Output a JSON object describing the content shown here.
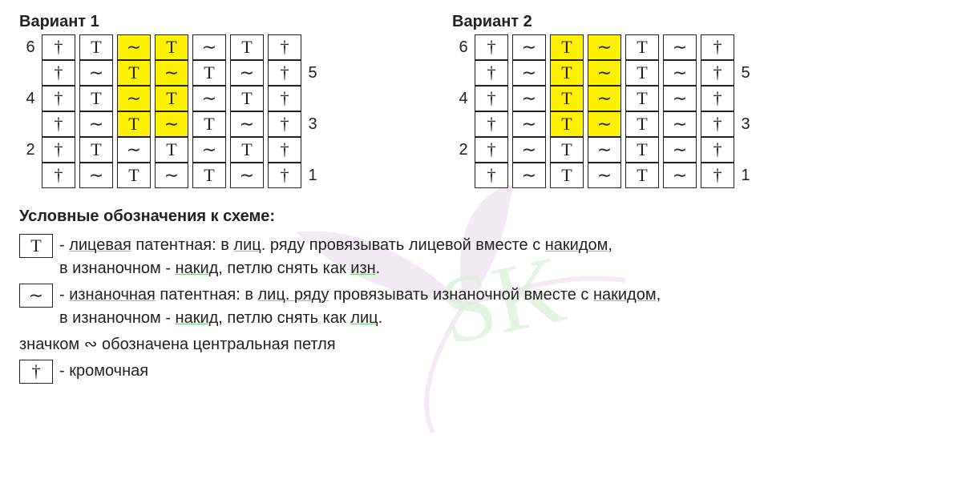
{
  "scheme1": {
    "title": "Вариант 1",
    "rows": [
      {
        "num_left": "6",
        "num_right": "",
        "cells": [
          {
            "s": "†"
          },
          {
            "sp": true
          },
          {
            "s": "T"
          },
          {
            "sp": true
          },
          {
            "s": "∼",
            "hl": true
          },
          {
            "sp": true
          },
          {
            "s": "T",
            "hl": true
          },
          {
            "sp": true
          },
          {
            "s": "∼"
          },
          {
            "sp": true
          },
          {
            "s": "T"
          },
          {
            "sp": true
          },
          {
            "s": "†"
          }
        ]
      },
      {
        "num_left": "",
        "num_right": "5",
        "cells": [
          {
            "s": "†"
          },
          {
            "sp": true
          },
          {
            "s": "∼"
          },
          {
            "sp": true
          },
          {
            "s": "T",
            "hl": true
          },
          {
            "sp": true
          },
          {
            "s": "∼",
            "hl": true
          },
          {
            "sp": true
          },
          {
            "s": "T"
          },
          {
            "sp": true
          },
          {
            "s": "∼"
          },
          {
            "sp": true
          },
          {
            "s": "†"
          }
        ]
      },
      {
        "num_left": "4",
        "num_right": "",
        "cells": [
          {
            "s": "†"
          },
          {
            "sp": true
          },
          {
            "s": "T"
          },
          {
            "sp": true
          },
          {
            "s": "∼",
            "hl": true
          },
          {
            "sp": true
          },
          {
            "s": "T",
            "hl": true
          },
          {
            "sp": true
          },
          {
            "s": "∼"
          },
          {
            "sp": true
          },
          {
            "s": "T"
          },
          {
            "sp": true
          },
          {
            "s": "†"
          }
        ]
      },
      {
        "num_left": "",
        "num_right": "3",
        "cells": [
          {
            "s": "†"
          },
          {
            "sp": true
          },
          {
            "s": "∼"
          },
          {
            "sp": true
          },
          {
            "s": "T",
            "hl": true
          },
          {
            "sp": true
          },
          {
            "s": "∼",
            "hl": true
          },
          {
            "sp": true
          },
          {
            "s": "T"
          },
          {
            "sp": true
          },
          {
            "s": "∼"
          },
          {
            "sp": true
          },
          {
            "s": "†"
          }
        ]
      },
      {
        "num_left": "2",
        "num_right": "",
        "cells": [
          {
            "s": "†"
          },
          {
            "sp": true
          },
          {
            "s": "T"
          },
          {
            "sp": true
          },
          {
            "s": "∼"
          },
          {
            "sp": true
          },
          {
            "s": "T"
          },
          {
            "sp": true
          },
          {
            "s": "∼"
          },
          {
            "sp": true
          },
          {
            "s": "T"
          },
          {
            "sp": true
          },
          {
            "s": "†"
          }
        ]
      },
      {
        "num_left": "",
        "num_right": "1",
        "cells": [
          {
            "s": "†"
          },
          {
            "sp": true
          },
          {
            "s": "∼"
          },
          {
            "sp": true
          },
          {
            "s": "T"
          },
          {
            "sp": true
          },
          {
            "s": "∼"
          },
          {
            "sp": true
          },
          {
            "s": "T"
          },
          {
            "sp": true
          },
          {
            "s": "∼"
          },
          {
            "sp": true
          },
          {
            "s": "†"
          }
        ]
      }
    ]
  },
  "scheme2": {
    "title": "Вариант 2",
    "rows": [
      {
        "num_left": "6",
        "num_right": "",
        "cells": [
          {
            "s": "†"
          },
          {
            "sp": true
          },
          {
            "s": "∼"
          },
          {
            "sp": true
          },
          {
            "s": "T",
            "hl": true
          },
          {
            "sp": true
          },
          {
            "s": "∼",
            "hl": true
          },
          {
            "sp": true
          },
          {
            "s": "T"
          },
          {
            "sp": true
          },
          {
            "s": "∼"
          },
          {
            "sp": true
          },
          {
            "s": "†"
          }
        ]
      },
      {
        "num_left": "",
        "num_right": "5",
        "cells": [
          {
            "s": "†"
          },
          {
            "sp": true
          },
          {
            "s": "∼"
          },
          {
            "sp": true
          },
          {
            "s": "T",
            "hl": true
          },
          {
            "sp": true
          },
          {
            "s": "∼",
            "hl": true
          },
          {
            "sp": true
          },
          {
            "s": "T"
          },
          {
            "sp": true
          },
          {
            "s": "∼"
          },
          {
            "sp": true
          },
          {
            "s": "†"
          }
        ]
      },
      {
        "num_left": "4",
        "num_right": "",
        "cells": [
          {
            "s": "†"
          },
          {
            "sp": true
          },
          {
            "s": "∼"
          },
          {
            "sp": true
          },
          {
            "s": "T",
            "hl": true
          },
          {
            "sp": true
          },
          {
            "s": "∼",
            "hl": true
          },
          {
            "sp": true
          },
          {
            "s": "T"
          },
          {
            "sp": true
          },
          {
            "s": "∼"
          },
          {
            "sp": true
          },
          {
            "s": "†"
          }
        ]
      },
      {
        "num_left": "",
        "num_right": "3",
        "cells": [
          {
            "s": "†"
          },
          {
            "sp": true
          },
          {
            "s": "∼"
          },
          {
            "sp": true
          },
          {
            "s": "T",
            "hl": true
          },
          {
            "sp": true
          },
          {
            "s": "∼",
            "hl": true
          },
          {
            "sp": true
          },
          {
            "s": "T"
          },
          {
            "sp": true
          },
          {
            "s": "∼"
          },
          {
            "sp": true
          },
          {
            "s": "†"
          }
        ]
      },
      {
        "num_left": "2",
        "num_right": "",
        "cells": [
          {
            "s": "†"
          },
          {
            "sp": true
          },
          {
            "s": "∼"
          },
          {
            "sp": true
          },
          {
            "s": "T"
          },
          {
            "sp": true
          },
          {
            "s": "∼"
          },
          {
            "sp": true
          },
          {
            "s": "T"
          },
          {
            "sp": true
          },
          {
            "s": "∼"
          },
          {
            "sp": true
          },
          {
            "s": "†"
          }
        ]
      },
      {
        "num_left": "",
        "num_right": "1",
        "cells": [
          {
            "s": "†"
          },
          {
            "sp": true
          },
          {
            "s": "∼"
          },
          {
            "sp": true
          },
          {
            "s": "T"
          },
          {
            "sp": true
          },
          {
            "s": "∼"
          },
          {
            "sp": true
          },
          {
            "s": "T"
          },
          {
            "sp": true
          },
          {
            "s": "∼"
          },
          {
            "sp": true
          },
          {
            "s": "†"
          }
        ]
      }
    ]
  },
  "legend": {
    "title": "Условные обозначения  к схеме:",
    "items": [
      {
        "sym": "T",
        "text_html": "- <span class='u'>лицевая</span> патентная: в <span class='u'>лиц</span>. ряду провязывать лицевой вместе с <span class='u'>накидом</span>,<br>в изнаночном  -  <span class='u'>накид</span>, петлю снять как <span class='u'>изн</span>."
      },
      {
        "sym": "∼",
        "text_html": "-  <span class='u'>изнаночная</span> патентная: в <span class='u'>лиц. ряду</span> провязывать изнаночной  вместе с <span class='u'>накидом</span>,<br>в изнаночном -  <span class='u'>накид</span>, петлю снять как <span class='u'>лиц</span>."
      }
    ],
    "free_line": "значком   ∾ обозначена  центральная петля",
    "final": {
      "sym": "†",
      "text_html": "-  кромочная"
    }
  },
  "colors": {
    "highlight": "#fff200",
    "border": "#222222",
    "text": "#222222",
    "underline": "#7bd07b"
  }
}
